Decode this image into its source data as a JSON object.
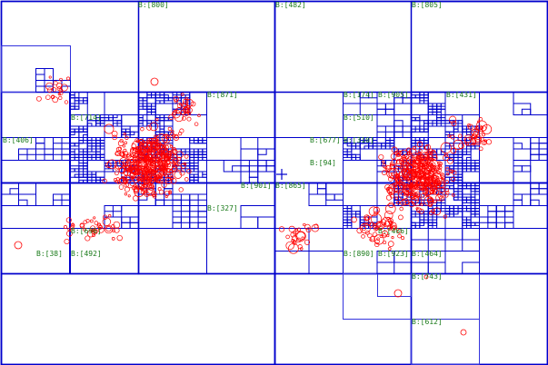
{
  "colors": {
    "background": "#ffffff",
    "node_border": "#0000cc",
    "thin_border": "#3333dd",
    "point": "#ff0000",
    "label": "#1a7a1a",
    "cursor": "#0000cc"
  },
  "labels": [
    {
      "id": "b800",
      "text": "B:[800]"
    },
    {
      "id": "b482",
      "text": "B:[482]"
    },
    {
      "id": "b805",
      "text": "B:[805]"
    },
    {
      "id": "b871",
      "text": "B:[871]"
    },
    {
      "id": "b174",
      "text": "B:[174]"
    },
    {
      "id": "b905",
      "text": "B:[905]"
    },
    {
      "id": "b431",
      "text": "B:[431]"
    },
    {
      "id": "b714",
      "text": "B:[714]"
    },
    {
      "id": "b510",
      "text": "B:[510]"
    },
    {
      "id": "b406",
      "text": "B:[406]"
    },
    {
      "id": "b677",
      "text": "B:[677]"
    },
    {
      "id": "b310",
      "text": "B:[310]"
    },
    {
      "id": "b94",
      "text": "B:[94]"
    },
    {
      "id": "b901",
      "text": "B:[901]"
    },
    {
      "id": "b865",
      "text": "B:[865]"
    },
    {
      "id": "b327",
      "text": "B:[327]"
    },
    {
      "id": "b696",
      "text": "B:[696]"
    },
    {
      "id": "b466",
      "text": "B:[466]"
    },
    {
      "id": "b38",
      "text": "B:[38]"
    },
    {
      "id": "b492",
      "text": "B:[492]"
    },
    {
      "id": "b890",
      "text": "B:[890]"
    },
    {
      "id": "b923",
      "text": "B:[923]"
    },
    {
      "id": "b464",
      "text": "B:[464]"
    },
    {
      "id": "b743",
      "text": "B:[743]"
    },
    {
      "id": "b612",
      "text": "B:[612]"
    }
  ]
}
